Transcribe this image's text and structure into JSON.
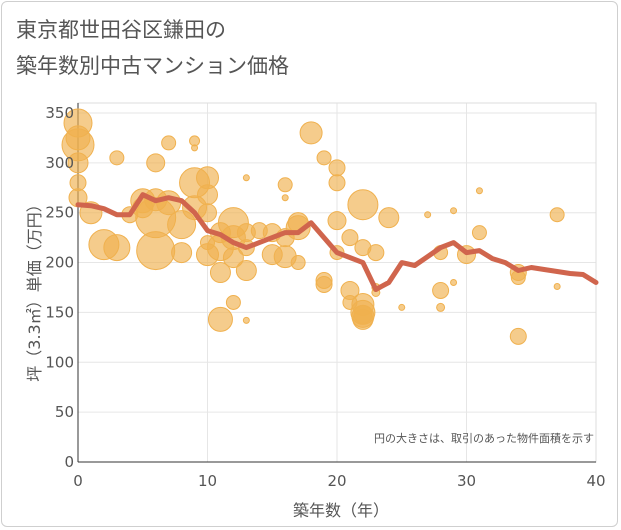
{
  "chart_data": {
    "type": "scatter",
    "title": "東京都世田谷区鎌田の\n築年数別中古マンション価格",
    "xlabel": "築年数（年）",
    "ylabel": "坪（3.3㎡）単価（万円）",
    "annotation": "円の大きさは、取引のあった物件面積を示す",
    "xlim": [
      0,
      40
    ],
    "ylim": [
      0,
      360
    ],
    "x_ticks": [
      "0",
      "10",
      "20",
      "30",
      "40"
    ],
    "y_ticks": [
      "0",
      "50",
      "100",
      "150",
      "200",
      "250",
      "300",
      "350"
    ],
    "grid": true,
    "colors": {
      "bubble": "#f0b14f",
      "line": "#d0654d",
      "grid": "#e6e6e6",
      "text": "#555555"
    },
    "series": [
      {
        "type": "bubble",
        "points": [
          {
            "x": 0,
            "y": 340,
            "size": 14
          },
          {
            "x": 0,
            "y": 325,
            "size": 12
          },
          {
            "x": 0,
            "y": 318,
            "size": 16
          },
          {
            "x": 0,
            "y": 300,
            "size": 10
          },
          {
            "x": 0,
            "y": 280,
            "size": 8
          },
          {
            "x": 0,
            "y": 265,
            "size": 9
          },
          {
            "x": 1,
            "y": 250,
            "size": 11
          },
          {
            "x": 2,
            "y": 218,
            "size": 15
          },
          {
            "x": 3,
            "y": 305,
            "size": 7
          },
          {
            "x": 3,
            "y": 215,
            "size": 13
          },
          {
            "x": 4,
            "y": 248,
            "size": 8
          },
          {
            "x": 5,
            "y": 262,
            "size": 12
          },
          {
            "x": 5,
            "y": 255,
            "size": 10
          },
          {
            "x": 6,
            "y": 300,
            "size": 9
          },
          {
            "x": 6,
            "y": 263,
            "size": 11
          },
          {
            "x": 6,
            "y": 245,
            "size": 20
          },
          {
            "x": 6,
            "y": 212,
            "size": 19
          },
          {
            "x": 7,
            "y": 320,
            "size": 7
          },
          {
            "x": 7,
            "y": 260,
            "size": 12
          },
          {
            "x": 8,
            "y": 238,
            "size": 14
          },
          {
            "x": 8,
            "y": 210,
            "size": 10
          },
          {
            "x": 9,
            "y": 322,
            "size": 5
          },
          {
            "x": 9,
            "y": 315,
            "size": 3
          },
          {
            "x": 9,
            "y": 280,
            "size": 15
          },
          {
            "x": 9,
            "y": 255,
            "size": 12
          },
          {
            "x": 10,
            "y": 285,
            "size": 11
          },
          {
            "x": 10,
            "y": 268,
            "size": 10
          },
          {
            "x": 10,
            "y": 250,
            "size": 9
          },
          {
            "x": 10,
            "y": 220,
            "size": 7
          },
          {
            "x": 10,
            "y": 208,
            "size": 11
          },
          {
            "x": 11,
            "y": 230,
            "size": 10
          },
          {
            "x": 11,
            "y": 215,
            "size": 13
          },
          {
            "x": 11,
            "y": 190,
            "size": 10
          },
          {
            "x": 11,
            "y": 143,
            "size": 12
          },
          {
            "x": 12,
            "y": 240,
            "size": 15
          },
          {
            "x": 12,
            "y": 225,
            "size": 12
          },
          {
            "x": 12,
            "y": 205,
            "size": 10
          },
          {
            "x": 12,
            "y": 160,
            "size": 7
          },
          {
            "x": 13,
            "y": 285,
            "size": 3
          },
          {
            "x": 13,
            "y": 230,
            "size": 9
          },
          {
            "x": 13,
            "y": 215,
            "size": 8
          },
          {
            "x": 13,
            "y": 192,
            "size": 10
          },
          {
            "x": 13,
            "y": 142,
            "size": 3
          },
          {
            "x": 14,
            "y": 232,
            "size": 8
          },
          {
            "x": 15,
            "y": 230,
            "size": 9
          },
          {
            "x": 15,
            "y": 208,
            "size": 10
          },
          {
            "x": 16,
            "y": 278,
            "size": 7
          },
          {
            "x": 16,
            "y": 225,
            "size": 9
          },
          {
            "x": 16,
            "y": 206,
            "size": 11
          },
          {
            "x": 16,
            "y": 265,
            "size": 3
          },
          {
            "x": 17,
            "y": 240,
            "size": 10
          },
          {
            "x": 17,
            "y": 235,
            "size": 12
          },
          {
            "x": 17,
            "y": 200,
            "size": 7
          },
          {
            "x": 18,
            "y": 330,
            "size": 11
          },
          {
            "x": 19,
            "y": 305,
            "size": 7
          },
          {
            "x": 19,
            "y": 182,
            "size": 8
          },
          {
            "x": 19,
            "y": 178,
            "size": 8
          },
          {
            "x": 20,
            "y": 295,
            "size": 8
          },
          {
            "x": 20,
            "y": 280,
            "size": 8
          },
          {
            "x": 20,
            "y": 242,
            "size": 9
          },
          {
            "x": 20,
            "y": 210,
            "size": 7
          },
          {
            "x": 21,
            "y": 225,
            "size": 8
          },
          {
            "x": 21,
            "y": 172,
            "size": 9
          },
          {
            "x": 21,
            "y": 160,
            "size": 7
          },
          {
            "x": 22,
            "y": 258,
            "size": 15
          },
          {
            "x": 22,
            "y": 215,
            "size": 8
          },
          {
            "x": 22,
            "y": 158,
            "size": 11
          },
          {
            "x": 22,
            "y": 150,
            "size": 12
          },
          {
            "x": 22,
            "y": 146,
            "size": 11
          },
          {
            "x": 22,
            "y": 143,
            "size": 10
          },
          {
            "x": 22,
            "y": 148,
            "size": 9
          },
          {
            "x": 23,
            "y": 210,
            "size": 8
          },
          {
            "x": 23,
            "y": 175,
            "size": 4
          },
          {
            "x": 23,
            "y": 170,
            "size": 4
          },
          {
            "x": 24,
            "y": 245,
            "size": 10
          },
          {
            "x": 25,
            "y": 155,
            "size": 3
          },
          {
            "x": 27,
            "y": 248,
            "size": 3
          },
          {
            "x": 28,
            "y": 210,
            "size": 7
          },
          {
            "x": 28,
            "y": 172,
            "size": 8
          },
          {
            "x": 28,
            "y": 155,
            "size": 4
          },
          {
            "x": 29,
            "y": 252,
            "size": 3
          },
          {
            "x": 29,
            "y": 180,
            "size": 3
          },
          {
            "x": 30,
            "y": 208,
            "size": 9
          },
          {
            "x": 31,
            "y": 230,
            "size": 7
          },
          {
            "x": 31,
            "y": 272,
            "size": 3
          },
          {
            "x": 34,
            "y": 190,
            "size": 8
          },
          {
            "x": 34,
            "y": 185,
            "size": 7
          },
          {
            "x": 34,
            "y": 126,
            "size": 8
          },
          {
            "x": 37,
            "y": 248,
            "size": 7
          },
          {
            "x": 37,
            "y": 176,
            "size": 3
          }
        ]
      },
      {
        "type": "line",
        "x": [
          0,
          1,
          2,
          3,
          4,
          5,
          6,
          7,
          8,
          9,
          10,
          11,
          12,
          13,
          14,
          15,
          16,
          17,
          18,
          19,
          20,
          21,
          22,
          23,
          24,
          25,
          26,
          27,
          28,
          29,
          30,
          31,
          32,
          33,
          34,
          35,
          36,
          37,
          38,
          39,
          40
        ],
        "y": [
          258,
          257,
          254,
          248,
          248,
          268,
          262,
          265,
          262,
          250,
          232,
          228,
          220,
          215,
          220,
          225,
          230,
          230,
          240,
          225,
          210,
          205,
          200,
          173,
          180,
          200,
          197,
          206,
          215,
          220,
          210,
          212,
          204,
          200,
          192,
          195,
          193,
          191,
          189,
          188,
          180
        ]
      }
    ]
  }
}
